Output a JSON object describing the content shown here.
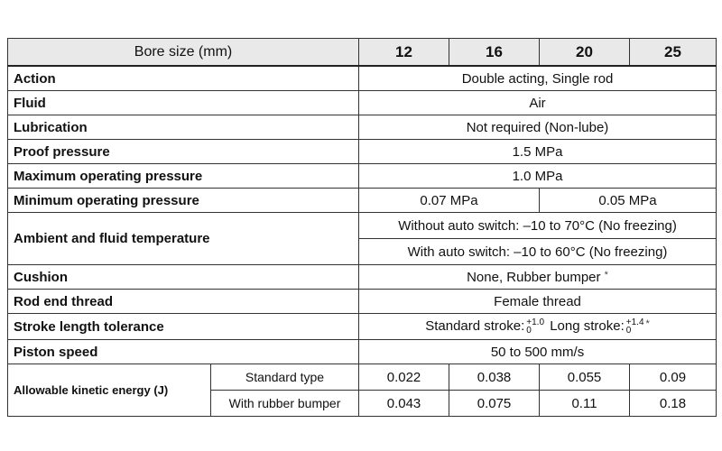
{
  "table": {
    "header": [
      "Bore size (mm)",
      "12",
      "16",
      "20",
      "25"
    ],
    "rows": [
      [
        "Action",
        "Double acting, Single rod"
      ],
      [
        "Fluid",
        "Air"
      ],
      [
        "Lubrication",
        "Not required (Non-lube)"
      ],
      [
        "Proof pressure",
        "1.5 MPa"
      ],
      [
        "Maximum operating pressure",
        "1.0 MPa"
      ],
      [
        "Minimum operating pressure",
        "0.07 MPa",
        "0.05 MPa"
      ],
      [
        "Ambient and fluid temperature",
        "Without auto switch: –10 to 70°C (No freezing)",
        "With auto switch: –10 to 60°C (No freezing)"
      ],
      [
        "Cushion",
        "None, Rubber bumper",
        "*"
      ],
      [
        "Rod end thread",
        "Female thread"
      ],
      [
        "Stroke length tolerance",
        "Standard stroke:",
        "+1.0",
        "0",
        "Long stroke:",
        "+1.4",
        "0",
        "*"
      ],
      [
        "Piston speed",
        "50 to 500 mm/s"
      ],
      [
        "Allowable kinetic energy (J)",
        "Standard type",
        "0.022",
        "0.038",
        "0.055",
        "0.09"
      ],
      [
        "With rubber bumper",
        "0.043",
        "0.075",
        "0.11",
        "0.18"
      ]
    ]
  }
}
